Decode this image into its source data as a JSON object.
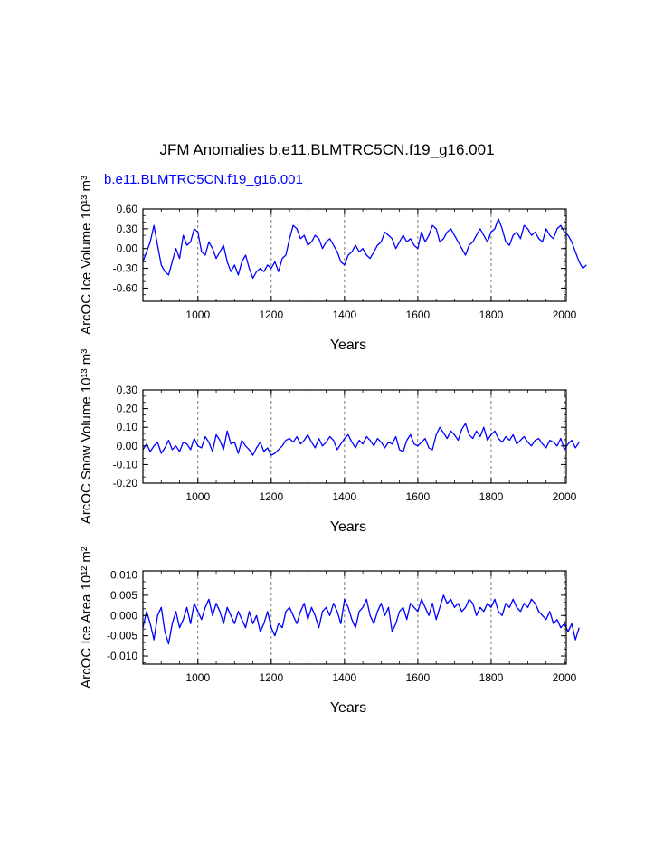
{
  "figure": {
    "title": "JFM Anomalies b.e11.BLMTRC5CN.f19_g16.001",
    "subtitle": "b.e11.BLMTRC5CN.f19_g16.001",
    "line_color": "#0000ff",
    "gridline_color": "#555555"
  },
  "chart_data": [
    {
      "type": "line",
      "name": "ice-volume",
      "xlabel": "Years",
      "ylabel": "ArcOC Ice Volume 10¹³ m³",
      "xlim": [
        850,
        2005
      ],
      "ylim": [
        -0.8,
        0.6
      ],
      "xticks": [
        1000,
        1200,
        1400,
        1600,
        1800,
        2000
      ],
      "yticks": [
        -0.6,
        -0.3,
        0.0,
        0.3,
        0.6
      ],
      "ytick_labels": [
        "-0.60",
        "-0.30",
        "0.00",
        "0.30",
        "0.60"
      ],
      "series": [
        {
          "name": "Ice Volume",
          "x_start": 850,
          "x_step": 10,
          "values": [
            -0.2,
            -0.05,
            0.1,
            0.35,
            0.05,
            -0.25,
            -0.35,
            -0.4,
            -0.2,
            0.0,
            -0.15,
            0.2,
            0.05,
            0.1,
            0.3,
            0.25,
            -0.05,
            -0.1,
            0.1,
            0.0,
            -0.15,
            -0.05,
            0.05,
            -0.2,
            -0.35,
            -0.25,
            -0.4,
            -0.2,
            -0.1,
            -0.3,
            -0.45,
            -0.35,
            -0.3,
            -0.35,
            -0.25,
            -0.3,
            -0.2,
            -0.35,
            -0.15,
            -0.1,
            0.15,
            0.35,
            0.3,
            0.15,
            0.2,
            0.05,
            0.1,
            0.2,
            0.15,
            0.0,
            0.1,
            0.15,
            0.05,
            -0.05,
            -0.2,
            -0.25,
            -0.1,
            -0.05,
            0.05,
            -0.05,
            0.0,
            -0.1,
            -0.15,
            -0.05,
            0.05,
            0.1,
            0.25,
            0.2,
            0.15,
            0.0,
            0.1,
            0.2,
            0.1,
            0.15,
            0.05,
            0.0,
            0.25,
            0.1,
            0.2,
            0.35,
            0.3,
            0.1,
            0.15,
            0.25,
            0.3,
            0.2,
            0.1,
            0.0,
            -0.1,
            0.05,
            0.1,
            0.2,
            0.3,
            0.2,
            0.1,
            0.25,
            0.3,
            0.45,
            0.3,
            0.1,
            0.05,
            0.2,
            0.25,
            0.15,
            0.35,
            0.3,
            0.2,
            0.25,
            0.15,
            0.1,
            0.3,
            0.2,
            0.15,
            0.3,
            0.35,
            0.25,
            0.2,
            0.1,
            -0.05,
            -0.2,
            -0.3,
            -0.25
          ]
        }
      ]
    },
    {
      "type": "line",
      "name": "snow-volume",
      "xlabel": "Years",
      "ylabel": "ArcOC Snow Volume 10¹³ m³",
      "xlim": [
        850,
        2005
      ],
      "ylim": [
        -0.2,
        0.3
      ],
      "xticks": [
        1000,
        1200,
        1400,
        1600,
        1800,
        2000
      ],
      "yticks": [
        -0.2,
        -0.1,
        0.0,
        0.1,
        0.2,
        0.3
      ],
      "ytick_labels": [
        "-0.20",
        "-0.10",
        "0.00",
        "0.10",
        "0.20",
        "0.30"
      ],
      "series": [
        {
          "name": "Snow Volume",
          "x_start": 850,
          "x_step": 10,
          "values": [
            -0.02,
            0.01,
            -0.03,
            0.0,
            0.02,
            -0.04,
            -0.01,
            0.03,
            -0.02,
            0.0,
            -0.03,
            0.02,
            0.01,
            -0.02,
            0.04,
            0.0,
            -0.01,
            0.05,
            0.02,
            -0.03,
            0.06,
            0.03,
            -0.02,
            0.08,
            0.01,
            0.02,
            -0.04,
            0.03,
            0.0,
            -0.02,
            -0.05,
            -0.01,
            0.02,
            -0.03,
            -0.01,
            -0.05,
            -0.04,
            -0.02,
            0.0,
            0.03,
            0.04,
            0.02,
            0.05,
            0.01,
            0.03,
            0.06,
            0.02,
            -0.01,
            0.04,
            0.0,
            0.02,
            0.05,
            0.03,
            -0.02,
            0.01,
            0.04,
            0.06,
            0.02,
            -0.01,
            0.03,
            0.01,
            0.05,
            0.03,
            0.0,
            0.04,
            0.02,
            -0.01,
            0.02,
            0.01,
            0.05,
            -0.02,
            -0.03,
            0.03,
            0.06,
            0.01,
            0.0,
            0.02,
            0.04,
            -0.01,
            -0.02,
            0.06,
            0.1,
            0.07,
            0.04,
            0.08,
            0.06,
            0.03,
            0.09,
            0.12,
            0.06,
            0.04,
            0.08,
            0.05,
            0.1,
            0.03,
            0.06,
            0.08,
            0.04,
            0.02,
            0.05,
            0.03,
            0.06,
            0.01,
            0.03,
            0.05,
            0.02,
            0.0,
            0.03,
            0.04,
            0.01,
            -0.01,
            0.03,
            0.02,
            0.0,
            0.04,
            -0.02,
            0.01,
            0.03,
            -0.01,
            0.02
          ]
        }
      ]
    },
    {
      "type": "line",
      "name": "ice-area",
      "xlabel": "Years",
      "ylabel": "ArcOC Ice Area 10¹² m²",
      "xlim": [
        850,
        2005
      ],
      "ylim": [
        -0.012,
        0.011
      ],
      "xticks": [
        1000,
        1200,
        1400,
        1600,
        1800,
        2000
      ],
      "yticks": [
        -0.01,
        -0.005,
        0.0,
        0.005,
        0.01
      ],
      "ytick_labels": [
        "-0.010",
        "-0.005",
        "0.000",
        "0.005",
        "0.010"
      ],
      "series": [
        {
          "name": "Ice Area",
          "x_start": 850,
          "x_step": 10,
          "values": [
            -0.003,
            0.001,
            -0.002,
            -0.006,
            0.0,
            0.002,
            -0.004,
            -0.007,
            -0.002,
            0.001,
            -0.003,
            -0.001,
            0.002,
            -0.002,
            0.003,
            0.001,
            -0.001,
            0.002,
            0.004,
            0.0,
            0.003,
            0.001,
            -0.002,
            0.002,
            0.0,
            -0.002,
            0.001,
            -0.001,
            -0.003,
            0.001,
            -0.002,
            0.0,
            -0.004,
            -0.002,
            0.001,
            -0.003,
            -0.005,
            -0.002,
            -0.003,
            0.001,
            0.002,
            0.0,
            -0.002,
            0.001,
            0.003,
            -0.001,
            0.002,
            0.0,
            -0.003,
            0.001,
            0.002,
            0.0,
            0.003,
            0.001,
            -0.002,
            0.004,
            0.002,
            -0.001,
            -0.003,
            0.001,
            0.002,
            0.004,
            0.0,
            -0.002,
            0.001,
            0.003,
            0.0,
            0.002,
            -0.004,
            -0.002,
            0.001,
            0.002,
            -0.001,
            0.003,
            0.002,
            0.001,
            0.004,
            0.002,
            0.0,
            0.003,
            -0.001,
            0.002,
            0.005,
            0.003,
            0.004,
            0.002,
            0.003,
            0.001,
            0.002,
            0.004,
            0.003,
            0.0,
            0.002,
            0.001,
            0.003,
            0.002,
            0.004,
            0.001,
            0.0,
            0.003,
            0.002,
            0.004,
            0.002,
            0.001,
            0.003,
            0.002,
            0.004,
            0.003,
            0.001,
            0.0,
            -0.001,
            0.001,
            -0.002,
            -0.001,
            -0.003,
            -0.002,
            -0.004,
            -0.002,
            -0.006,
            -0.003
          ]
        }
      ]
    }
  ]
}
